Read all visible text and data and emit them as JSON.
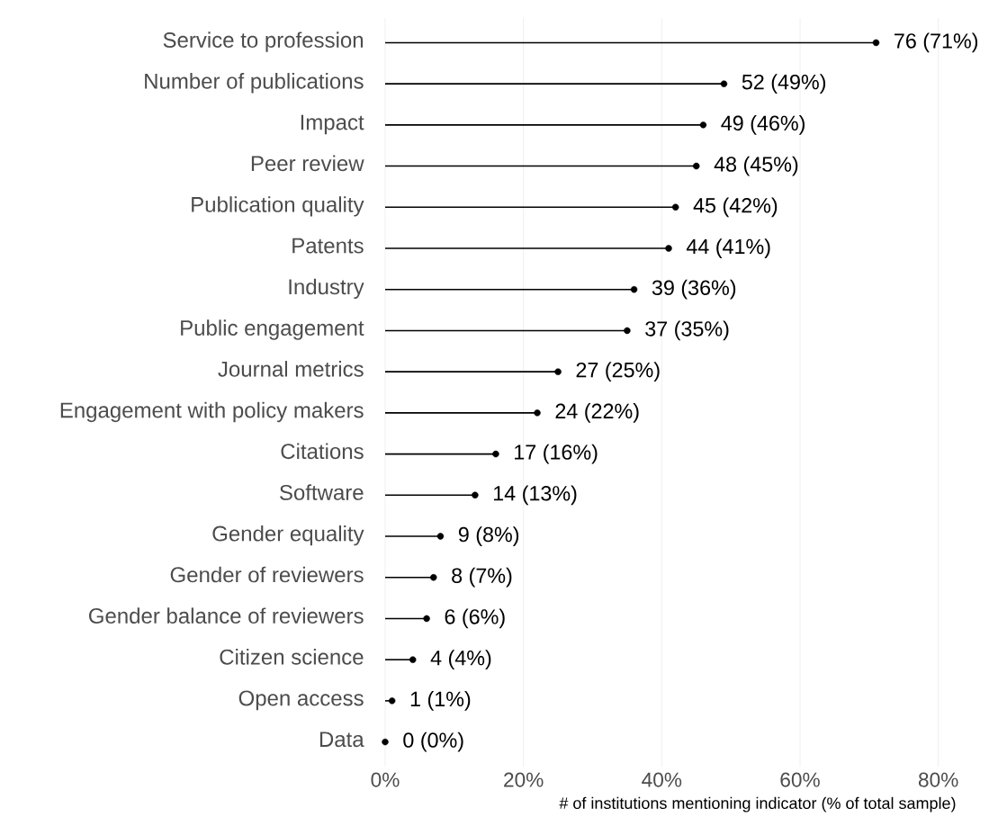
{
  "chart_data": {
    "type": "lollipop",
    "orientation": "horizontal",
    "xlabel": "# of institutions mentioning indicator (% of total sample)",
    "categories": [
      "Service to profession",
      "Number of publications",
      "Impact",
      "Peer review",
      "Publication quality",
      "Patents",
      "Industry",
      "Public engagement",
      "Journal metrics",
      "Engagement with policy makers",
      "Citations",
      "Software",
      "Gender equality",
      "Gender of reviewers",
      "Gender balance of reviewers",
      "Citizen science",
      "Open access",
      "Data"
    ],
    "values": [
      71,
      49,
      46,
      45,
      42,
      41,
      36,
      35,
      25,
      22,
      16,
      13,
      8,
      7,
      6,
      4,
      1,
      0
    ],
    "value_labels": [
      "76 (71%)",
      "52 (49%)",
      "49 (46%)",
      "48 (45%)",
      "45 (42%)",
      "44 (41%)",
      "39 (36%)",
      "37 (35%)",
      "27 (25%)",
      "24 (22%)",
      "17 (16%)",
      "14 (13%)",
      "9 (8%)",
      "8 (7%)",
      "6 (6%)",
      "4 (4%)",
      "1 (1%)",
      "0 (0%)"
    ],
    "color": "#000000",
    "marker": "circle",
    "xlim": [
      0,
      80
    ],
    "xticks": [
      {
        "value": 0,
        "label": "0%"
      },
      {
        "value": 20,
        "label": "20%"
      },
      {
        "value": 40,
        "label": "40%"
      },
      {
        "value": 60,
        "label": "60%"
      },
      {
        "value": 80,
        "label": "80%"
      }
    ],
    "grid": "x"
  }
}
